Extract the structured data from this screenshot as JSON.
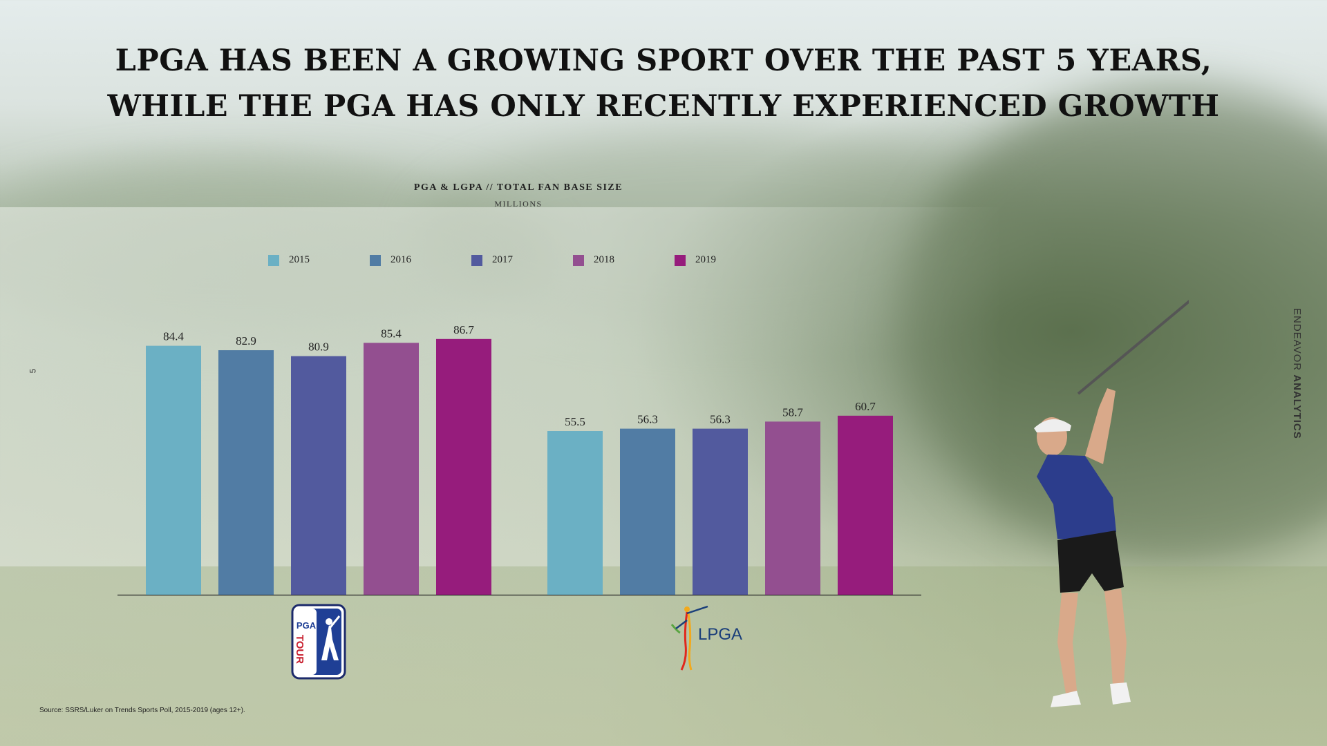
{
  "headline": {
    "line1": "LPGA HAS BEEN A GROWING SPORT OVER THE PAST 5 YEARS,",
    "line2": "WHILE THE PGA HAS ONLY RECENTLY EXPERIENCED GROWTH"
  },
  "side_number": "5",
  "brand": {
    "light": "ENDEAVOR ",
    "bold": "ANALYTICS"
  },
  "source": "Source: SSRS/Luker on Trends Sports Poll, 2015-2019 (ages 12+).",
  "logos": {
    "pga_tour": {
      "line1": "PGA",
      "line2": "TOUR"
    },
    "lpga": {
      "text": "LPGA"
    }
  },
  "colors": {
    "2015": "#6bb0c4",
    "2016": "#517ca4",
    "2017": "#525a9e",
    "2018": "#934f90",
    "2019": "#961c7c"
  },
  "chart_data": {
    "type": "bar",
    "title": "PGA & LGPA // TOTAL FAN BASE SIZE",
    "subtitle": "MILLIONS",
    "categories": [
      "PGA TOUR",
      "LPGA"
    ],
    "legend_position": "top",
    "grid": false,
    "ylim": [
      0,
      100
    ],
    "series": [
      {
        "name": "2015",
        "color": "#6bb0c4",
        "values": [
          84.4,
          55.5
        ]
      },
      {
        "name": "2016",
        "color": "#517ca4",
        "values": [
          82.9,
          56.3
        ]
      },
      {
        "name": "2017",
        "color": "#525a9e",
        "values": [
          80.9,
          56.3
        ]
      },
      {
        "name": "2018",
        "color": "#934f90",
        "values": [
          85.4,
          58.7
        ]
      },
      {
        "name": "2019",
        "color": "#961c7c",
        "values": [
          86.7,
          60.7
        ]
      }
    ]
  }
}
